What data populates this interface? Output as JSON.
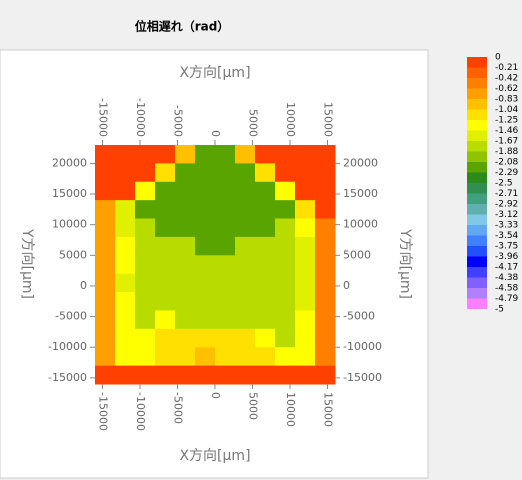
{
  "chart_data": {
    "type": "heatmap",
    "title": "位相遅れ（rad）",
    "xlabel": "X方向[μm]",
    "ylabel": "Y方向[μm]",
    "xlim": [
      -16000,
      16000
    ],
    "ylim": [
      -16000,
      23000
    ],
    "xticks": [
      -15000,
      -10000,
      -5000,
      0,
      5000,
      10000,
      15000
    ],
    "yticks": [
      -15000,
      -10000,
      -5000,
      0,
      5000,
      10000,
      15000,
      20000
    ],
    "z": [
      [
        -0.1,
        -0.1,
        -0.1,
        -0.1,
        -1.0,
        -2.2,
        -2.2,
        -1.0,
        -0.1,
        -0.1,
        -0.1,
        -0.1
      ],
      [
        -0.1,
        -0.1,
        -0.1,
        -1.2,
        -2.2,
        -2.2,
        -2.2,
        -2.2,
        -1.2,
        -0.1,
        -0.1,
        -0.1
      ],
      [
        -0.1,
        -0.1,
        -1.3,
        -2.2,
        -2.2,
        -2.2,
        -2.2,
        -2.2,
        -2.2,
        -1.3,
        -0.1,
        -0.1
      ],
      [
        -0.8,
        -1.6,
        -2.2,
        -2.2,
        -2.2,
        -2.2,
        -2.2,
        -2.2,
        -2.2,
        -2.2,
        -1.2,
        -0.1
      ],
      [
        -0.8,
        -1.6,
        -1.8,
        -2.2,
        -2.2,
        -2.2,
        -2.2,
        -2.2,
        -2.2,
        -1.8,
        -1.4,
        -0.6
      ],
      [
        -0.8,
        -1.4,
        -1.8,
        -1.8,
        -1.8,
        -2.2,
        -2.2,
        -1.8,
        -1.8,
        -1.8,
        -1.5,
        -0.6
      ],
      [
        -0.8,
        -1.4,
        -1.8,
        -1.8,
        -1.8,
        -1.8,
        -1.8,
        -1.8,
        -1.8,
        -1.8,
        -1.5,
        -0.6
      ],
      [
        -0.8,
        -1.5,
        -1.8,
        -1.8,
        -1.8,
        -1.8,
        -1.8,
        -1.8,
        -1.8,
        -1.8,
        -1.5,
        -0.6
      ],
      [
        -0.8,
        -1.4,
        -1.8,
        -1.8,
        -1.8,
        -1.8,
        -1.8,
        -1.8,
        -1.8,
        -1.8,
        -1.5,
        -0.6
      ],
      [
        -0.8,
        -1.4,
        -1.8,
        -1.4,
        -1.8,
        -1.8,
        -1.8,
        -1.8,
        -1.8,
        -1.8,
        -1.4,
        -0.6
      ],
      [
        -0.8,
        -1.3,
        -1.4,
        -1.2,
        -1.1,
        -1.2,
        -1.1,
        -1.2,
        -1.3,
        -1.8,
        -1.3,
        -0.6
      ],
      [
        -0.8,
        -1.3,
        -1.3,
        -1.1,
        -1.2,
        -1.0,
        -1.1,
        -1.1,
        -1.2,
        -1.4,
        -1.3,
        -0.6
      ],
      [
        -0.1,
        -0.1,
        -0.1,
        -0.1,
        -0.1,
        -0.1,
        -0.1,
        -0.1,
        -0.1,
        -0.1,
        -0.1,
        -0.1
      ]
    ],
    "levels": [
      0,
      -0.21,
      -0.42,
      -0.62,
      -0.83,
      -1.04,
      -1.25,
      -1.46,
      -1.67,
      -1.88,
      -2.08,
      -2.29,
      -2.5,
      -2.71,
      -2.92,
      -3.12,
      -3.33,
      -3.54,
      -3.75,
      -3.96,
      -4.17,
      -4.38,
      -4.58,
      -4.79,
      -5
    ],
    "colors": [
      "#ff4000",
      "#ff6000",
      "#ff8000",
      "#ffa000",
      "#ffc000",
      "#ffe000",
      "#ffff00",
      "#e0f000",
      "#b8dc00",
      "#90c400",
      "#5aa400",
      "#2a8a1a",
      "#309050",
      "#40a080",
      "#60b0b0",
      "#80c8e8",
      "#60a8f0",
      "#4080ff",
      "#2050ff",
      "#0000ff",
      "#4040ff",
      "#8060ff",
      "#b080ff",
      "#ff80ff"
    ]
  }
}
